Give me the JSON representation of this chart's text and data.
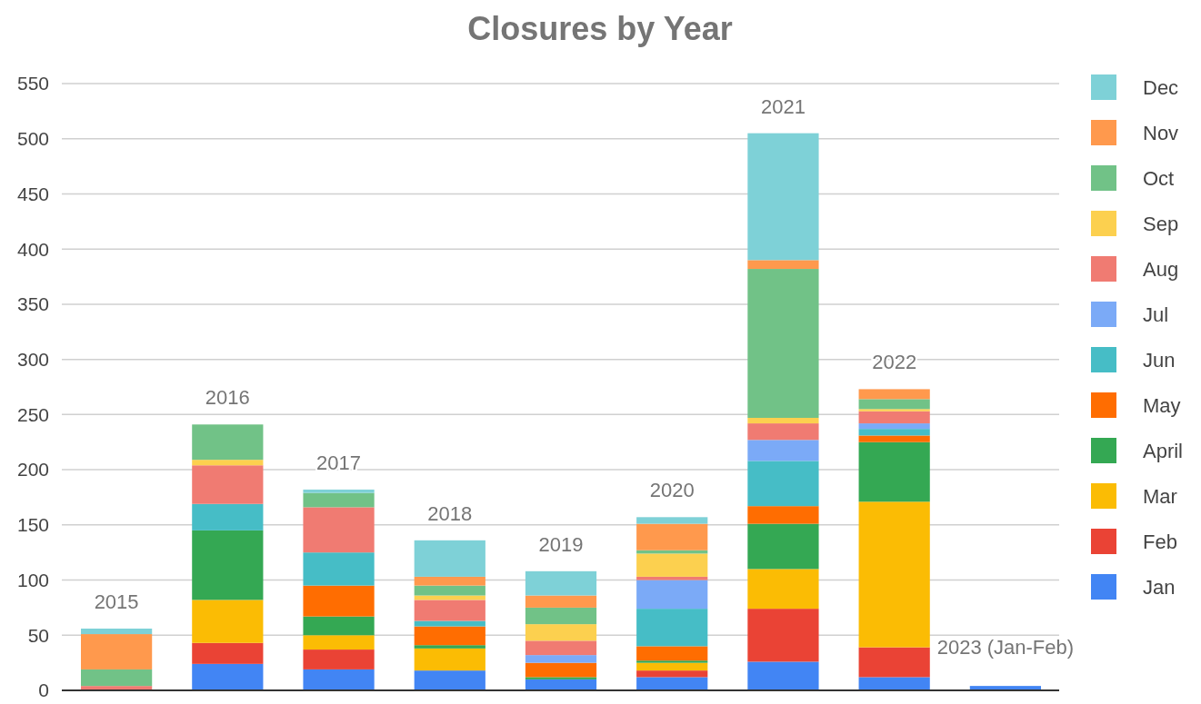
{
  "chart_data": {
    "type": "bar",
    "title": "Closures by Year",
    "stacked": true,
    "categories": [
      "2015",
      "2016",
      "2017",
      "2018",
      "2019",
      "2020",
      "2021",
      "2022",
      "2023 (Jan-Feb)"
    ],
    "series": [
      {
        "name": "Jan",
        "color": "#4285f4",
        "values": [
          0,
          24,
          19,
          18,
          10,
          12,
          26,
          12,
          4
        ]
      },
      {
        "name": "Feb",
        "color": "#ea4335",
        "values": [
          0,
          19,
          18,
          0,
          0,
          6,
          48,
          27,
          0
        ]
      },
      {
        "name": "Mar",
        "color": "#fbbc04",
        "values": [
          0,
          39,
          13,
          20,
          0,
          7,
          36,
          132,
          0
        ]
      },
      {
        "name": "April",
        "color": "#34a853",
        "values": [
          0,
          63,
          17,
          3,
          2,
          2,
          41,
          54,
          0
        ]
      },
      {
        "name": "May",
        "color": "#ff6d01",
        "values": [
          0,
          0,
          28,
          17,
          13,
          13,
          16,
          6,
          0
        ]
      },
      {
        "name": "Jun",
        "color": "#46bdc6",
        "values": [
          0,
          24,
          30,
          5,
          0,
          34,
          41,
          6,
          0
        ]
      },
      {
        "name": "Jul",
        "color": "#7baaf7",
        "values": [
          0,
          0,
          0,
          0,
          7,
          26,
          19,
          5,
          0
        ]
      },
      {
        "name": "Aug",
        "color": "#f07b72",
        "values": [
          4,
          35,
          41,
          19,
          13,
          3,
          15,
          11,
          0
        ]
      },
      {
        "name": "Sep",
        "color": "#fcd04f",
        "values": [
          0,
          5,
          0,
          4,
          15,
          21,
          5,
          2,
          0
        ]
      },
      {
        "name": "Oct",
        "color": "#71c287",
        "values": [
          15,
          32,
          13,
          9,
          15,
          3,
          135,
          9,
          0
        ]
      },
      {
        "name": "Nov",
        "color": "#ff994d",
        "values": [
          32,
          0,
          0,
          8,
          11,
          24,
          8,
          9,
          0
        ]
      },
      {
        "name": "Dec",
        "color": "#7ed1d7",
        "values": [
          5,
          0,
          3,
          33,
          22,
          6,
          115,
          0,
          0
        ]
      }
    ],
    "ylim": [
      0,
      550
    ],
    "yticks": [
      0,
      50,
      100,
      150,
      200,
      250,
      300,
      350,
      400,
      450,
      500,
      550
    ],
    "grid": "y",
    "legend": "right",
    "tick_labels": "y"
  }
}
